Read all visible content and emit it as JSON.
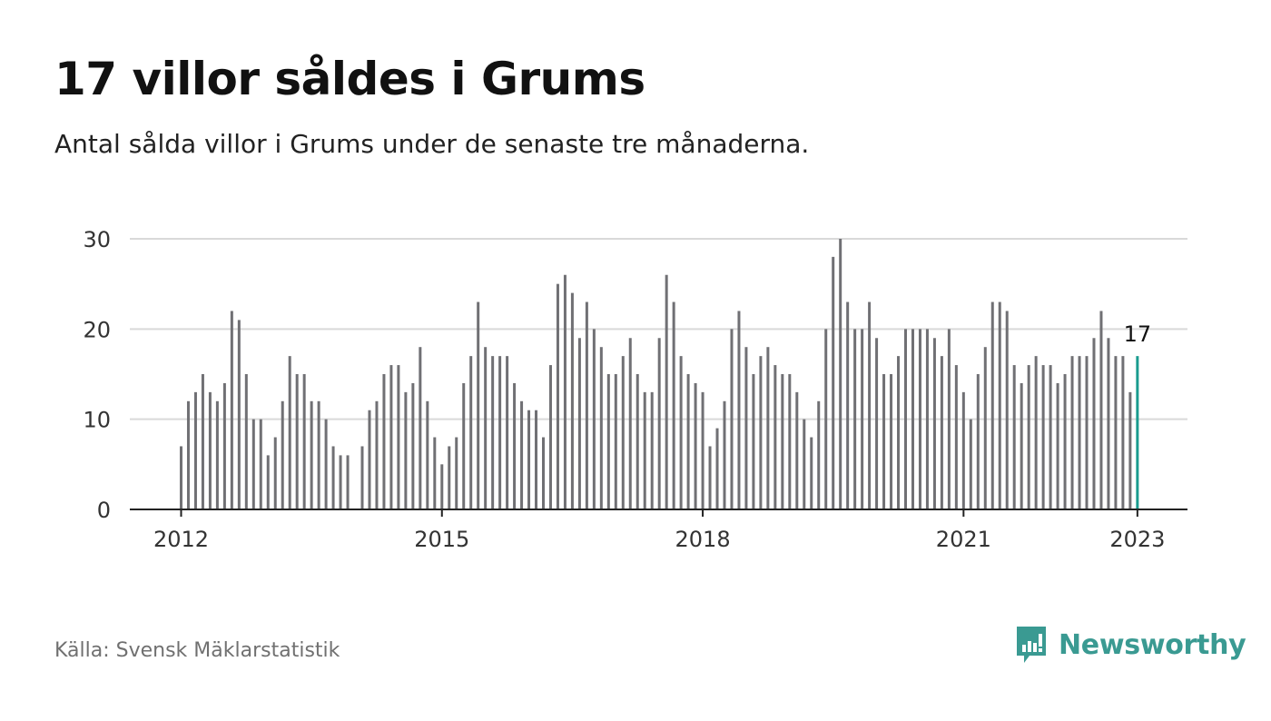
{
  "title": "17 villor såldes i Grums",
  "subtitle": "Antal sålda villor i Grums under de senaste tre månaderna.",
  "source": "Källa: Svensk Mäklarstatistik",
  "brand": "Newsworthy",
  "colors": {
    "bar": "#707074",
    "highlight": "#1a9c8f",
    "grid": "#d9d9d9",
    "axis": "#222222",
    "brand": "#3a9a92"
  },
  "chart_data": {
    "type": "bar",
    "ylim": [
      0,
      30
    ],
    "yticks": [
      0,
      10,
      20,
      30
    ],
    "xticks": [
      {
        "label": "2012",
        "index": 0
      },
      {
        "label": "2015",
        "index": 36
      },
      {
        "label": "2018",
        "index": 72
      },
      {
        "label": "2021",
        "index": 108
      },
      {
        "label": "2023",
        "index": 132
      }
    ],
    "highlight_label": "17",
    "values": [
      7,
      12,
      13,
      15,
      13,
      12,
      14,
      22,
      21,
      15,
      10,
      10,
      6,
      8,
      12,
      17,
      15,
      15,
      12,
      12,
      10,
      7,
      6,
      6,
      null,
      7,
      11,
      12,
      15,
      16,
      16,
      13,
      14,
      18,
      12,
      8,
      5,
      7,
      8,
      14,
      17,
      23,
      18,
      17,
      17,
      17,
      14,
      12,
      11,
      11,
      8,
      16,
      25,
      26,
      24,
      19,
      23,
      20,
      18,
      15,
      15,
      17,
      19,
      15,
      13,
      13,
      19,
      26,
      23,
      17,
      15,
      14,
      13,
      7,
      9,
      12,
      20,
      22,
      18,
      15,
      17,
      18,
      16,
      15,
      15,
      13,
      10,
      8,
      12,
      20,
      28,
      30,
      23,
      20,
      20,
      23,
      19,
      15,
      15,
      17,
      20,
      20,
      20,
      20,
      19,
      17,
      20,
      16,
      13,
      10,
      15,
      18,
      23,
      23,
      22,
      16,
      14,
      16,
      17,
      16,
      16,
      14,
      15,
      17,
      17,
      17,
      19,
      22,
      19,
      17,
      17,
      13,
      17
    ]
  }
}
